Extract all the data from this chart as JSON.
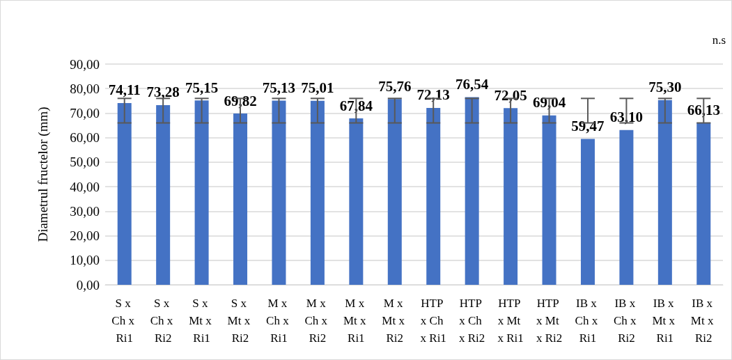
{
  "chart_data": {
    "type": "bar",
    "ylabel": "Diametrul fructelor (mm)",
    "annotations": [
      "n.s"
    ],
    "categories": [
      "S x Ch x Ri1",
      "S x Ch x Ri2",
      "S x Mt x Ri1",
      "S x Mt x Ri2",
      "M x Ch x Ri1",
      "M x Ch x Ri2",
      "M x Mt x Ri1",
      "M x Mt x Ri2",
      "HTP x Ch x Ri1",
      "HTP x Ch x Ri2",
      "HTP x Mt x Ri1",
      "HTP x Mt x Ri2",
      "IB x Ch x Ri1",
      "IB x Ch x Ri2",
      "IB x Mt x Ri1",
      "IB x Mt x Ri2"
    ],
    "values": [
      74.11,
      73.28,
      75.15,
      69.82,
      75.13,
      75.01,
      67.84,
      75.76,
      72.13,
      76.54,
      72.05,
      69.04,
      59.47,
      63.1,
      75.3,
      66.13
    ],
    "value_labels": [
      "74,11",
      "73,28",
      "75,15",
      "69,82",
      "75,13",
      "75,01",
      "67,84",
      "75,76",
      "72,13",
      "76,54",
      "72,05",
      "69,04",
      "59,47",
      "63,10",
      "75,30",
      "66,13"
    ],
    "errors": [
      [
        66,
        76
      ],
      [
        66,
        76
      ],
      [
        66,
        76
      ],
      [
        66,
        76
      ],
      [
        66,
        76
      ],
      [
        66,
        76
      ],
      [
        66,
        76
      ],
      [
        66,
        76
      ],
      [
        66,
        76
      ],
      [
        66,
        76
      ],
      [
        66,
        76
      ],
      [
        66,
        76
      ],
      [
        66,
        76
      ],
      [
        66,
        76
      ],
      [
        66,
        76
      ],
      [
        66,
        76
      ]
    ],
    "color": "#4472c4",
    "ylim": [
      0,
      90
    ],
    "yticks": [
      {
        "value": 0,
        "label": "0,00"
      },
      {
        "value": 10,
        "label": "10,00"
      },
      {
        "value": 20,
        "label": "20,00"
      },
      {
        "value": 30,
        "label": "30,00"
      },
      {
        "value": 40,
        "label": "40,00"
      },
      {
        "value": 50,
        "label": "50,00"
      },
      {
        "value": 60,
        "label": "60,00"
      },
      {
        "value": 70,
        "label": "70,00"
      },
      {
        "value": 80,
        "label": "80,00"
      },
      {
        "value": 90,
        "label": "90,00"
      }
    ],
    "grid": "y"
  }
}
